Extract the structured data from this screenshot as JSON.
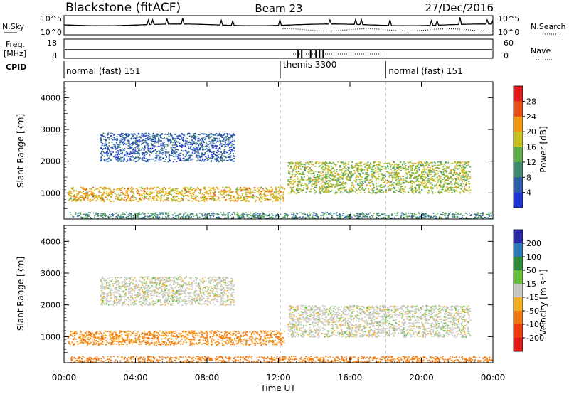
{
  "header": {
    "station": "Blackstone (fitACF)",
    "beam": "Beam 23",
    "date": "27/Dec/2016"
  },
  "noise_panel": {
    "left_label": "N.Sky",
    "right_label": "N.Search",
    "right_ticks": [
      "10^5",
      "10^0"
    ],
    "left_ticks": [
      "10^5",
      "10^0"
    ]
  },
  "freq_panel": {
    "left_label": "Freq.",
    "left_unit": "[MHz]",
    "left_ticks": [
      "18",
      "8"
    ],
    "right_label": "Nave",
    "right_ticks": [
      "60",
      "0"
    ]
  },
  "cpid": {
    "label": "CPID",
    "segments": [
      {
        "label": "normal (fast) 151",
        "start_hour": 0,
        "end_hour": 12.1
      },
      {
        "label": "themis 3300",
        "start_hour": 12.1,
        "end_hour": 18.0
      },
      {
        "label": "normal (fast) 151",
        "start_hour": 18.0,
        "end_hour": 24
      }
    ]
  },
  "x_axis": {
    "label": "Time UT",
    "ticks": [
      "00:00",
      "04:00",
      "08:00",
      "12:00",
      "16:00",
      "20:00",
      "00:00"
    ],
    "tick_hours": [
      0,
      4,
      8,
      12,
      16,
      20,
      24
    ]
  },
  "chart_data": [
    {
      "type": "heatmap",
      "title": "Power",
      "ylabel": "Slant Range [km]",
      "xlabel": "Time UT",
      "ylim": [
        180,
        4500
      ],
      "yticks": [
        "1000",
        "2000",
        "3000",
        "4000"
      ],
      "ytick_values": [
        1000,
        2000,
        3000,
        4000
      ],
      "colorbar": {
        "label": "Power [dB]",
        "ticks": [
          "4",
          "8",
          "12",
          "16",
          "20",
          "24",
          "28"
        ],
        "colors": [
          "#1f35d8",
          "#2e5ea8",
          "#3f8a6e",
          "#5fae4a",
          "#c8c220",
          "#f29a12",
          "#e85018",
          "#e41a1a"
        ]
      },
      "echo_regions": [
        {
          "name": "ground scatter early",
          "start_hour": 0.2,
          "end_hour": 12.3,
          "range_km": [
            750,
            1200
          ],
          "level": 20
        },
        {
          "name": "upper band",
          "start_hour": 2.0,
          "end_hour": 9.5,
          "range_km": [
            2000,
            2900
          ],
          "level": 6
        },
        {
          "name": "evening band",
          "start_hour": 12.5,
          "end_hour": 22.7,
          "range_km": [
            1000,
            2000
          ],
          "level": 16
        },
        {
          "name": "near range",
          "start_hour": 0.3,
          "end_hour": 24,
          "range_km": [
            200,
            400
          ],
          "level": 10
        }
      ]
    },
    {
      "type": "heatmap",
      "title": "Velocity",
      "ylabel": "Slant Range [km]",
      "xlabel": "Time UT",
      "ylim": [
        180,
        4500
      ],
      "yticks": [
        "1000",
        "2000",
        "3000",
        "4000"
      ],
      "ytick_values": [
        1000,
        2000,
        3000,
        4000
      ],
      "colorbar": {
        "label": "Velocity [m s⁻¹]",
        "ticks": [
          "200",
          "100",
          "50",
          "15",
          "-15",
          "-50",
          "-100",
          "-200"
        ],
        "colors": [
          "#2a2aa8",
          "#2e7ab8",
          "#2f8a3a",
          "#66c23a",
          "#c8c8c0",
          "#f4b020",
          "#f07a10",
          "#f03a10",
          "#e41a1a"
        ]
      },
      "echo_regions": [
        {
          "name": "ground scatter early",
          "start_hour": 0.2,
          "end_hour": 12.3,
          "range_km": [
            750,
            1200
          ],
          "velocity": -40
        },
        {
          "name": "upper band",
          "start_hour": 2.0,
          "end_hour": 9.5,
          "range_km": [
            2000,
            2900
          ],
          "velocity": 0
        },
        {
          "name": "evening band",
          "start_hour": 12.5,
          "end_hour": 22.7,
          "range_km": [
            1000,
            2000
          ],
          "velocity": 0
        },
        {
          "name": "near range",
          "start_hour": 0.3,
          "end_hour": 24,
          "range_km": [
            200,
            400
          ],
          "velocity": -50
        }
      ]
    }
  ]
}
